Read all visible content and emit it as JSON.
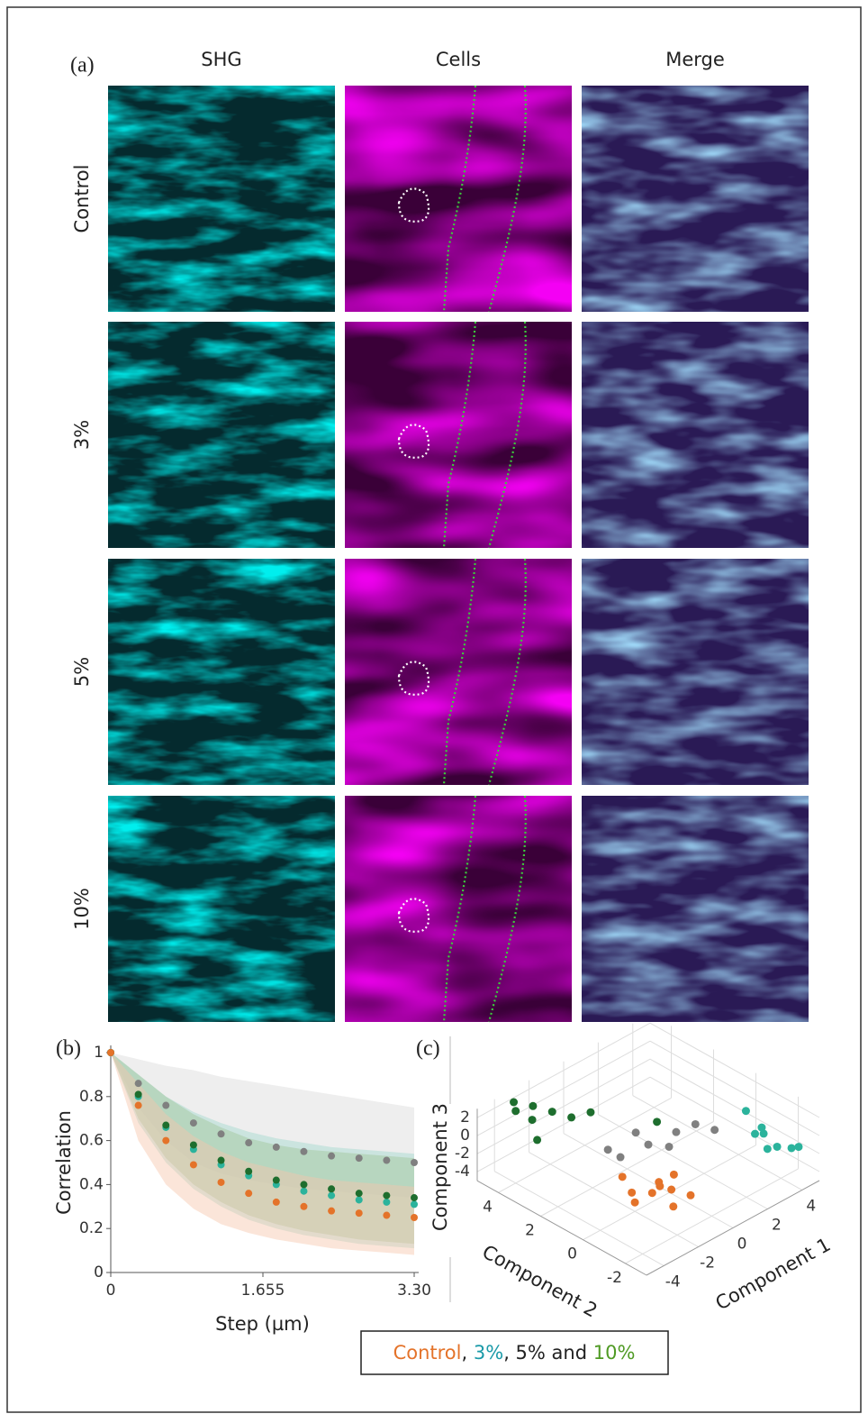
{
  "panel_a": {
    "label": "(a)",
    "columns": [
      "SHG",
      "Cells",
      "Merge"
    ],
    "rows": [
      "Control",
      "3%",
      "5%",
      "10%"
    ]
  },
  "chart_data": [
    {
      "type": "line",
      "panel_label": "(b)",
      "xlabel": "Step (µm)",
      "ylabel": "Correlation",
      "x": [
        0,
        0.3,
        0.6,
        0.9,
        1.2,
        1.5,
        1.8,
        2.1,
        2.4,
        2.7,
        3.0,
        3.3
      ],
      "xlim": [
        0,
        3.3
      ],
      "xticks": [
        0,
        1.655,
        {
          "value": 3.3,
          "label": "3.30"
        }
      ],
      "ylim": [
        0,
        1
      ],
      "yticks": [
        0,
        0.2,
        0.4,
        0.6,
        0.8,
        1
      ],
      "series": [
        {
          "name": "5%",
          "color": "#808080",
          "band_color": "#d9d9d9",
          "values": [
            1,
            0.86,
            0.76,
            0.68,
            0.63,
            0.59,
            0.57,
            0.55,
            0.53,
            0.52,
            0.51,
            0.5
          ],
          "band_upper": [
            1,
            0.97,
            0.94,
            0.92,
            0.89,
            0.87,
            0.85,
            0.83,
            0.81,
            0.79,
            0.77,
            0.75
          ],
          "band_lower": [
            1,
            0.75,
            0.6,
            0.5,
            0.45,
            0.42,
            0.4,
            0.38,
            0.37,
            0.36,
            0.35,
            0.34
          ]
        },
        {
          "name": "3%",
          "color": "#2bb39c",
          "band_color": "#9fd8cc",
          "values": [
            1,
            0.8,
            0.66,
            0.56,
            0.49,
            0.44,
            0.4,
            0.37,
            0.35,
            0.33,
            0.32,
            0.31
          ],
          "band_upper": [
            1,
            0.9,
            0.8,
            0.73,
            0.68,
            0.64,
            0.61,
            0.59,
            0.57,
            0.56,
            0.55,
            0.54
          ],
          "band_lower": [
            1,
            0.68,
            0.5,
            0.38,
            0.3,
            0.24,
            0.2,
            0.17,
            0.15,
            0.13,
            0.12,
            0.11
          ]
        },
        {
          "name": "10%",
          "color": "#1e6e2e",
          "band_color": "#9fc59a",
          "values": [
            1,
            0.81,
            0.67,
            0.58,
            0.51,
            0.46,
            0.42,
            0.4,
            0.38,
            0.36,
            0.35,
            0.34
          ],
          "band_upper": [
            1,
            0.9,
            0.8,
            0.72,
            0.66,
            0.61,
            0.58,
            0.56,
            0.55,
            0.54,
            0.53,
            0.52
          ],
          "band_lower": [
            1,
            0.7,
            0.52,
            0.4,
            0.32,
            0.26,
            0.22,
            0.19,
            0.17,
            0.15,
            0.14,
            0.13
          ]
        },
        {
          "name": "Control",
          "color": "#e4732a",
          "band_color": "#f6c6aa",
          "values": [
            1,
            0.76,
            0.6,
            0.49,
            0.41,
            0.36,
            0.32,
            0.3,
            0.28,
            0.27,
            0.26,
            0.25
          ],
          "band_upper": [
            1,
            0.86,
            0.72,
            0.62,
            0.55,
            0.5,
            0.47,
            0.44,
            0.42,
            0.41,
            0.4,
            0.39
          ],
          "band_lower": [
            1,
            0.6,
            0.4,
            0.29,
            0.22,
            0.18,
            0.15,
            0.13,
            0.11,
            0.1,
            0.09,
            0.08
          ]
        }
      ]
    },
    {
      "type": "scatter3d",
      "panel_label": "(c)",
      "xlabel": "Component 1",
      "ylabel": "Component 2",
      "zlabel": "Component 3",
      "xlim": [
        -5,
        5
      ],
      "xticks": [
        -4,
        -2,
        0,
        2,
        4
      ],
      "ylim": [
        -3,
        5
      ],
      "yticks": [
        -2,
        0,
        2,
        4
      ],
      "zlim": [
        -5,
        3
      ],
      "zticks": [
        -4,
        -2,
        0,
        2
      ],
      "series": [
        {
          "name": "Control",
          "color": "#e4732a",
          "x": [
            -1,
            -0.5,
            0,
            -1.5,
            -2,
            -1,
            0.5,
            -0.8,
            -1.2,
            0
          ],
          "y": [
            0,
            -0.5,
            0.5,
            1,
            0,
            -1,
            0.2,
            -0.2,
            0.8,
            -1
          ],
          "z": [
            -4,
            -3.5,
            -4.5,
            -3,
            -4,
            -4.2,
            -3.8,
            -3.2,
            -4.8,
            -4
          ]
        },
        {
          "name": "3%",
          "color": "#2bb39c",
          "x": [
            3,
            3.5,
            4,
            3.2,
            2.5,
            3.8,
            4.2,
            2.8
          ],
          "y": [
            -2,
            -1.5,
            -2.5,
            -1,
            -2,
            -3,
            -1.2,
            -2.8
          ],
          "z": [
            1,
            0.5,
            -1,
            2,
            1.5,
            0,
            -3,
            0.8
          ]
        },
        {
          "name": "5%",
          "color": "#808080",
          "x": [
            0,
            1,
            -1,
            0.5,
            1.5,
            -0.5,
            2,
            1.2
          ],
          "y": [
            1,
            0.5,
            1.5,
            2,
            0,
            2.5,
            -0.5,
            1
          ],
          "z": [
            -1,
            0,
            -2,
            -1.5,
            1,
            -3,
            0.5,
            -2.5
          ]
        },
        {
          "name": "10%",
          "color": "#1e6e2e",
          "x": [
            -3,
            -2.5,
            -3.5,
            -2,
            -4,
            -1.5,
            -3,
            -2.8,
            0.5
          ],
          "y": [
            4,
            3.5,
            4.5,
            3,
            4,
            2.5,
            3.8,
            4.2,
            1
          ],
          "z": [
            2.5,
            2,
            2.8,
            1.5,
            3,
            2.2,
            -1,
            0.5,
            1
          ]
        }
      ]
    }
  ],
  "legend": {
    "segments": [
      {
        "text": "Control",
        "color": "#e4732a"
      },
      {
        "text": ", ",
        "color": "#222222"
      },
      {
        "text": "3%",
        "color": "#1a9aa8"
      },
      {
        "text": ", 5% and ",
        "color": "#222222"
      },
      {
        "text": "10%",
        "color": "#4f9a24"
      }
    ]
  }
}
